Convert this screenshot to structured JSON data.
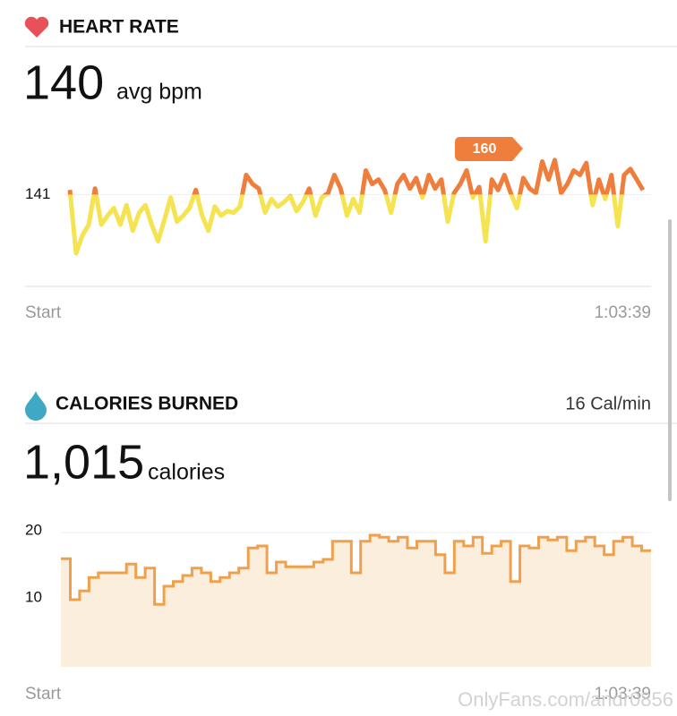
{
  "chart_data": [
    {
      "type": "line",
      "title": "HEART RATE",
      "headline": "140",
      "headline_unit": "avg bpm",
      "annotation": "160",
      "x_labels": [
        "Start",
        "1:03:39"
      ],
      "color_above": "#ef7d3c",
      "color_below": "#f5e34f",
      "ylim": [
        80,
        187
      ],
      "yticks": [
        141
      ],
      "values": [
        144,
        102,
        114,
        121,
        145,
        121,
        127,
        132,
        121,
        134,
        117,
        129,
        134,
        121,
        110,
        124,
        139,
        123,
        127,
        132,
        144,
        127,
        117,
        133,
        127,
        130,
        129,
        133,
        154,
        148,
        145,
        129,
        138,
        133,
        136,
        140,
        130,
        136,
        145,
        127,
        139,
        142,
        154,
        145,
        127,
        138,
        129,
        157,
        148,
        151,
        144,
        129,
        148,
        154,
        145,
        152,
        139,
        154,
        145,
        151,
        123,
        142,
        148,
        157,
        139,
        146,
        110,
        151,
        144,
        154,
        142,
        132,
        152,
        145,
        142,
        163,
        151,
        164,
        142,
        148,
        157,
        154,
        162,
        134,
        151,
        138,
        154,
        120,
        154,
        158,
        151,
        144
      ]
    },
    {
      "type": "step-area",
      "title": "CALORIES BURNED",
      "rate": "16 Cal/min",
      "headline": "1,015",
      "headline_unit": "calories",
      "x_labels": [
        "Start",
        "1:03:39"
      ],
      "color": "#f0a04b",
      "fill": "#fbeedd",
      "ylim": [
        0,
        21
      ],
      "yticks": [
        10,
        20
      ],
      "grid": true,
      "values": [
        16.1,
        10.0,
        11.3,
        13.3,
        14.0,
        14.0,
        14.0,
        15.3,
        13.3,
        14.7,
        9.3,
        12.0,
        12.7,
        13.6,
        14.7,
        14.0,
        12.7,
        13.3,
        14.0,
        14.7,
        17.7,
        18.0,
        14.0,
        15.6,
        14.9,
        14.9,
        14.9,
        15.6,
        16.0,
        18.7,
        18.7,
        14.0,
        18.7,
        19.6,
        19.3,
        18.7,
        19.3,
        17.7,
        18.7,
        18.7,
        16.7,
        14.0,
        18.7,
        18.0,
        19.3,
        16.9,
        18.0,
        18.7,
        12.7,
        18.0,
        17.7,
        19.3,
        18.9,
        19.3,
        17.3,
        18.7,
        19.3,
        18.0,
        16.7,
        18.7,
        19.3,
        18.0,
        17.3
      ]
    }
  ],
  "watermark": "OnlyFans.com/andr0856"
}
